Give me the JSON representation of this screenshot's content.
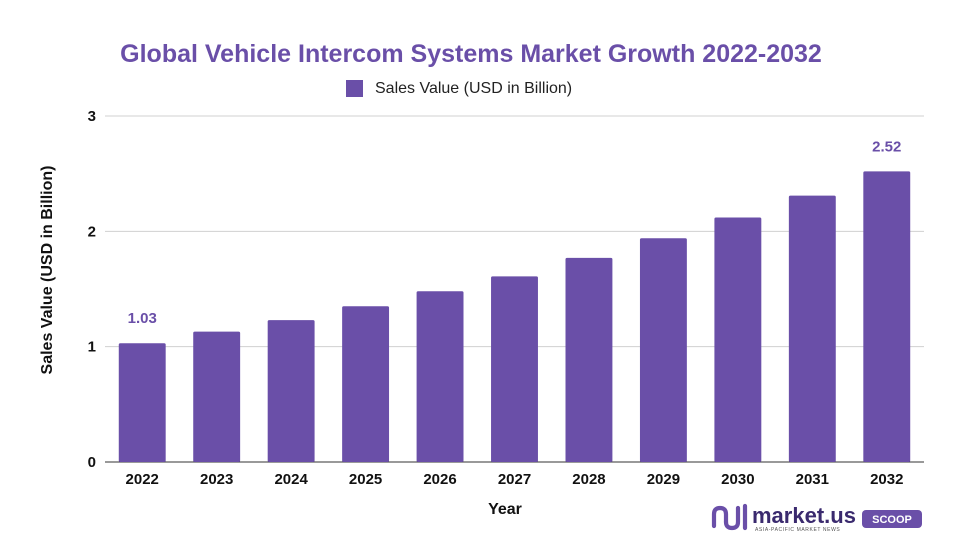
{
  "chart_data": {
    "type": "bar",
    "title": "Global Vehicle Intercom Systems Market Growth 2022-2032",
    "xlabel": "Year",
    "ylabel": "Sales Value (USD in Billion)",
    "categories": [
      "2022",
      "2023",
      "2024",
      "2025",
      "2026",
      "2027",
      "2028",
      "2029",
      "2030",
      "2031",
      "2032"
    ],
    "series": [
      {
        "name": "Sales Value (USD in Billion)",
        "values": [
          1.03,
          1.13,
          1.23,
          1.35,
          1.48,
          1.61,
          1.77,
          1.94,
          2.12,
          2.31,
          2.52
        ],
        "color": "#6a4fa8"
      }
    ],
    "data_labels": [
      {
        "category": "2022",
        "text": "1.03"
      },
      {
        "category": "2032",
        "text": "2.52"
      }
    ],
    "ylim": [
      0,
      3
    ],
    "yticks": [
      "0",
      "1",
      "2",
      "3"
    ],
    "grid": true,
    "legend": "top-center"
  },
  "colors": {
    "accent": "#6a4fa8",
    "title": "#6a4fa8",
    "grid": "#d0d0d0",
    "axis_text": "#111111"
  },
  "logo": {
    "text": "market.us",
    "tagline": "ASIA-PACIFIC MARKET NEWS",
    "badge": "SCOOP"
  }
}
